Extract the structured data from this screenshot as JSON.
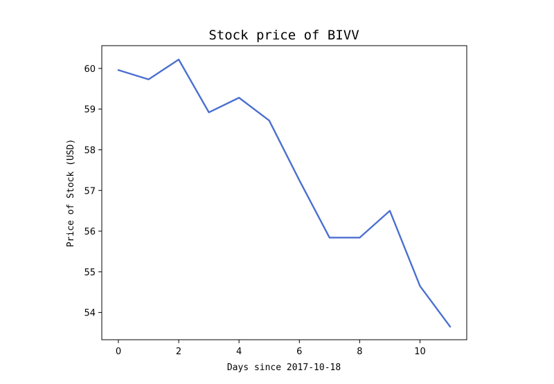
{
  "chart_data": {
    "type": "line",
    "title": "Stock price of BIVV",
    "xlabel": "Days since 2017-10-18",
    "ylabel": "Price of Stock (USD)",
    "x": [
      0,
      1,
      2,
      3,
      4,
      5,
      6,
      7,
      8,
      9,
      10,
      11
    ],
    "series": [
      {
        "values": [
          59.96,
          59.73,
          60.22,
          58.92,
          59.28,
          58.72,
          57.25,
          55.84,
          55.84,
          56.5,
          54.65,
          53.65
        ],
        "color": "#4a6fcf"
      }
    ],
    "xlim": [
      -0.55,
      11.55
    ],
    "ylim": [
      53.33,
      60.56
    ],
    "x_ticks": [
      "0",
      "2",
      "4",
      "6",
      "8",
      "10"
    ],
    "y_ticks": [
      "54",
      "55",
      "56",
      "57",
      "58",
      "59",
      "60"
    ],
    "grid": false,
    "legend": false
  }
}
